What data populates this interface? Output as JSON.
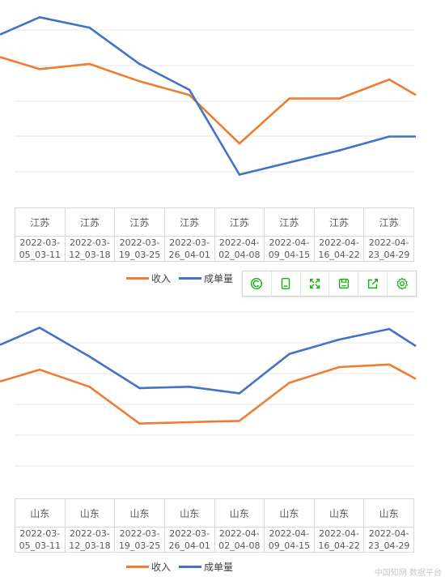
{
  "chart_data": [
    {
      "type": "line",
      "region": "江苏",
      "categories": [
        {
          "line1": "2022-03-",
          "line2": "05_03-11"
        },
        {
          "line1": "2022-03-",
          "line2": "12_03-18"
        },
        {
          "line1": "2022-03-",
          "line2": "19_03-25"
        },
        {
          "line1": "2022-03-",
          "line2": "26_04-01"
        },
        {
          "line1": "2022-04-",
          "line2": "02_04-08"
        },
        {
          "line1": "2022-04-",
          "line2": "09_04-15"
        },
        {
          "line1": "2022-04-",
          "line2": "16_04-22"
        },
        {
          "line1": "2022-04-",
          "line2": "23_04-29"
        }
      ],
      "series": [
        {
          "name": "收入",
          "color": "#ed7d31",
          "lead": 67,
          "values": [
            60,
            63,
            53,
            45,
            17,
            43,
            43,
            54
          ],
          "trail": 45
        },
        {
          "name": "成单量",
          "color": "#4472c4",
          "lead": 80,
          "values": [
            90,
            84,
            63,
            48,
            -1,
            6,
            13,
            21
          ],
          "trail": 21
        }
      ],
      "ylim": [
        -20,
        100
      ],
      "grid": true
    },
    {
      "type": "line",
      "region": "山东",
      "categories": [
        {
          "line1": "2022-03-",
          "line2": "05_03-11"
        },
        {
          "line1": "2022-03-",
          "line2": "12_03-18"
        },
        {
          "line1": "2022-03-",
          "line2": "19_03-25"
        },
        {
          "line1": "2022-03-",
          "line2": "26_04-01"
        },
        {
          "line1": "2022-04-",
          "line2": "02_04-08"
        },
        {
          "line1": "2022-04-",
          "line2": "09_04-15"
        },
        {
          "line1": "2022-04-",
          "line2": "16_04-22"
        },
        {
          "line1": "2022-04-",
          "line2": "23_04-29"
        }
      ],
      "series": [
        {
          "name": "收入",
          "color": "#ed7d31",
          "lead": 39,
          "values": [
            48,
            35,
            7,
            8,
            9,
            38,
            50,
            52
          ],
          "trail": 41
        },
        {
          "name": "成单量",
          "color": "#4472c4",
          "lead": 67,
          "values": [
            80,
            58,
            34,
            35,
            30,
            60,
            71,
            79
          ],
          "trail": 66
        }
      ],
      "ylim": [
        -50,
        100
      ],
      "grid": true
    }
  ],
  "toolbar": {
    "icons": [
      "reset-icon",
      "data-view-icon",
      "fullscreen-icon",
      "save-image-icon",
      "export-icon",
      "settings-icon"
    ],
    "accent": "#1aad19"
  },
  "watermark": "中国知网 数据平台"
}
